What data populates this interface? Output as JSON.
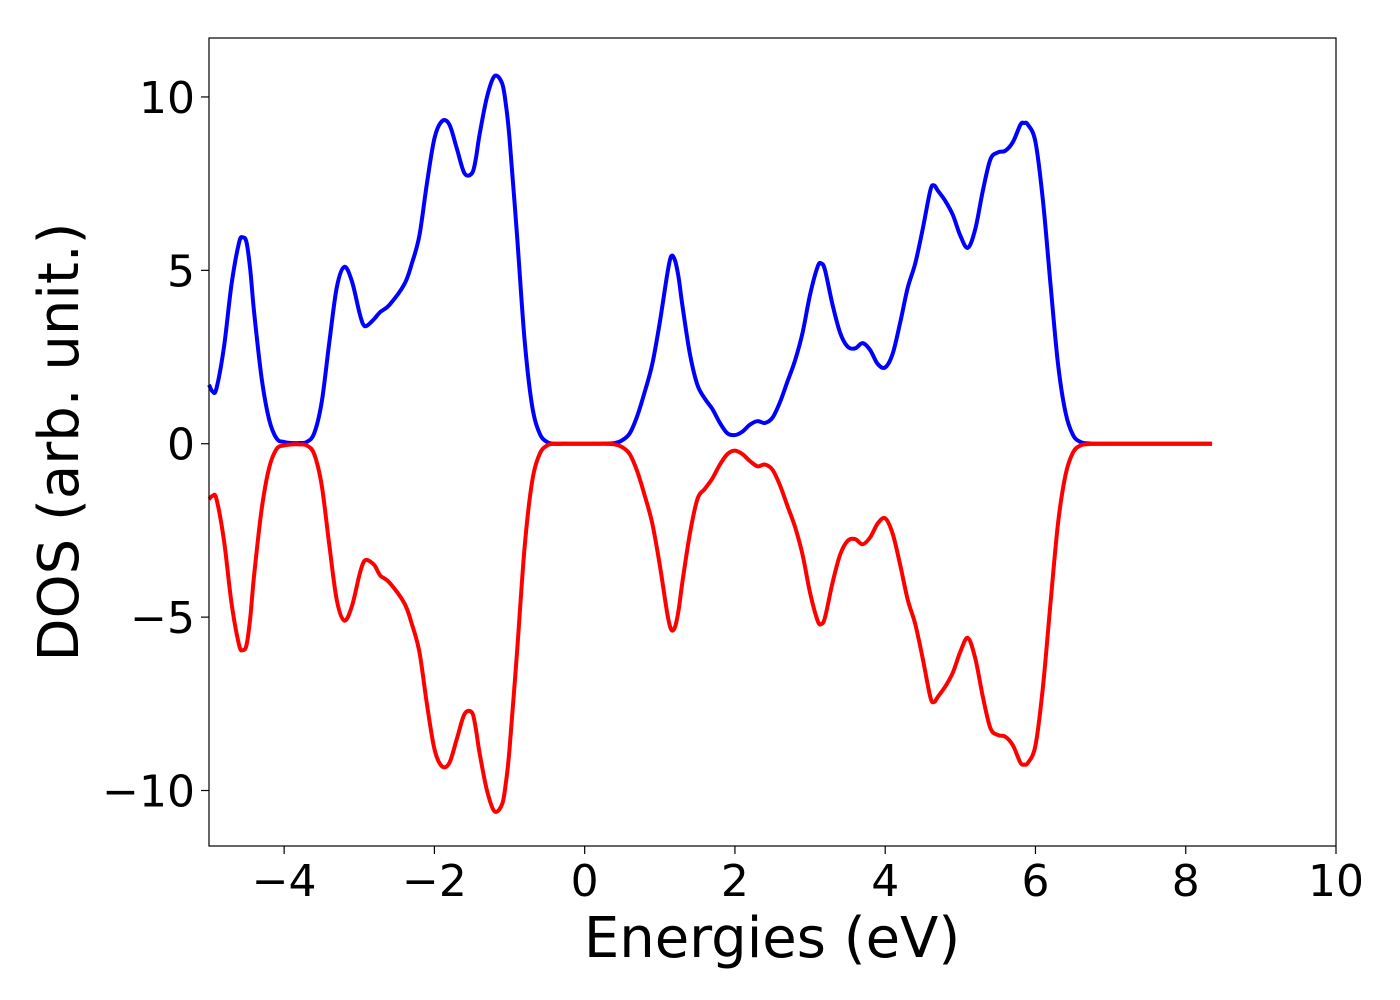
{
  "chart_data": {
    "type": "line",
    "title": "",
    "xlabel": "Energies (eV)",
    "ylabel": "DOS (arb. unit.)",
    "xlim": [
      -5,
      10
    ],
    "ylim": [
      -11.6,
      11.7
    ],
    "x_ticks": [
      -4,
      -2,
      0,
      2,
      4,
      6,
      8,
      10
    ],
    "x_tick_labels": [
      "−4",
      "−2",
      "0",
      "2",
      "4",
      "6",
      "8",
      "10"
    ],
    "y_ticks": [
      -10,
      -5,
      0,
      5,
      10
    ],
    "y_tick_labels": [
      "−10",
      "−5",
      "0",
      "5",
      "10"
    ],
    "grid": false,
    "legend": "none",
    "colors": {
      "spin_up": "#0000ff",
      "spin_down": "#ff0000",
      "axes": "#000000"
    },
    "series": [
      {
        "color": "#0000ff",
        "x": [
          -5.0,
          -4.95,
          -4.9,
          -4.8,
          -4.7,
          -4.6,
          -4.55,
          -4.5,
          -4.45,
          -4.4,
          -4.3,
          -4.2,
          -4.1,
          -4.0,
          -3.9,
          -3.8,
          -3.7,
          -3.6,
          -3.5,
          -3.4,
          -3.3,
          -3.2,
          -3.1,
          -3.0,
          -2.95,
          -2.9,
          -2.8,
          -2.72,
          -2.6,
          -2.4,
          -2.3,
          -2.2,
          -2.1,
          -2.0,
          -1.9,
          -1.8,
          -1.7,
          -1.6,
          -1.5,
          -1.45,
          -1.4,
          -1.3,
          -1.2,
          -1.1,
          -1.05,
          -1.0,
          -0.9,
          -0.8,
          -0.7,
          -0.6,
          -0.5,
          -0.4,
          -0.2,
          0.0,
          0.2,
          0.4,
          0.5,
          0.6,
          0.7,
          0.8,
          0.9,
          1.0,
          1.1,
          1.15,
          1.2,
          1.25,
          1.3,
          1.4,
          1.5,
          1.6,
          1.7,
          1.8,
          1.9,
          2.0,
          2.1,
          2.2,
          2.3,
          2.4,
          2.5,
          2.6,
          2.7,
          2.8,
          2.9,
          3.0,
          3.1,
          3.15,
          3.2,
          3.3,
          3.4,
          3.5,
          3.6,
          3.7,
          3.8,
          3.9,
          4.0,
          4.1,
          4.2,
          4.3,
          4.4,
          4.5,
          4.6,
          4.65,
          4.7,
          4.8,
          4.9,
          5.0,
          5.1,
          5.2,
          5.3,
          5.4,
          5.5,
          5.6,
          5.7,
          5.8,
          5.85,
          5.9,
          6.0,
          6.1,
          6.2,
          6.3,
          6.4,
          6.5,
          6.6,
          6.7,
          6.8,
          7.0,
          7.5,
          8.0,
          8.35
        ],
        "y": [
          1.7,
          1.5,
          1.6,
          2.8,
          4.6,
          5.8,
          5.95,
          5.8,
          5.0,
          3.8,
          1.9,
          0.7,
          0.15,
          0.05,
          0.02,
          0.02,
          0.05,
          0.3,
          1.2,
          2.9,
          4.5,
          5.1,
          4.7,
          3.8,
          3.45,
          3.4,
          3.6,
          3.8,
          4.0,
          4.6,
          5.2,
          6.0,
          7.5,
          8.8,
          9.3,
          9.2,
          8.5,
          7.8,
          7.8,
          8.2,
          8.9,
          10.0,
          10.6,
          10.4,
          9.8,
          8.8,
          6.0,
          3.0,
          1.1,
          0.3,
          0.05,
          0.0,
          0.0,
          0.0,
          0.0,
          0.02,
          0.1,
          0.3,
          0.8,
          1.5,
          2.3,
          3.5,
          4.9,
          5.4,
          5.3,
          4.8,
          4.0,
          2.6,
          1.7,
          1.3,
          1.0,
          0.6,
          0.3,
          0.25,
          0.35,
          0.55,
          0.65,
          0.6,
          0.75,
          1.2,
          1.8,
          2.4,
          3.2,
          4.3,
          5.1,
          5.2,
          5.0,
          4.0,
          3.2,
          2.8,
          2.75,
          2.9,
          2.7,
          2.3,
          2.2,
          2.6,
          3.5,
          4.5,
          5.2,
          6.2,
          7.3,
          7.45,
          7.3,
          7.0,
          6.6,
          6.0,
          5.65,
          6.2,
          7.3,
          8.2,
          8.4,
          8.45,
          8.7,
          9.2,
          9.25,
          9.2,
          8.7,
          7.0,
          4.6,
          2.3,
          0.9,
          0.25,
          0.05,
          0.01,
          0.0,
          0.0,
          0.0,
          0.0,
          0.0
        ]
      },
      {
        "color": "#ff0000",
        "x": [
          -5.0,
          -4.95,
          -4.9,
          -4.8,
          -4.7,
          -4.6,
          -4.55,
          -4.5,
          -4.45,
          -4.4,
          -4.3,
          -4.2,
          -4.1,
          -4.0,
          -3.9,
          -3.8,
          -3.7,
          -3.6,
          -3.5,
          -3.4,
          -3.3,
          -3.2,
          -3.1,
          -3.0,
          -2.95,
          -2.9,
          -2.8,
          -2.72,
          -2.6,
          -2.4,
          -2.3,
          -2.2,
          -2.1,
          -2.0,
          -1.9,
          -1.8,
          -1.7,
          -1.6,
          -1.5,
          -1.45,
          -1.4,
          -1.3,
          -1.2,
          -1.1,
          -1.05,
          -1.0,
          -0.9,
          -0.8,
          -0.7,
          -0.6,
          -0.5,
          -0.4,
          -0.2,
          0.0,
          0.2,
          0.4,
          0.5,
          0.6,
          0.7,
          0.8,
          0.9,
          1.0,
          1.1,
          1.15,
          1.2,
          1.25,
          1.3,
          1.4,
          1.5,
          1.6,
          1.7,
          1.8,
          1.9,
          2.0,
          2.1,
          2.2,
          2.3,
          2.4,
          2.5,
          2.6,
          2.7,
          2.8,
          2.9,
          3.0,
          3.1,
          3.15,
          3.2,
          3.3,
          3.4,
          3.5,
          3.6,
          3.7,
          3.8,
          3.9,
          4.0,
          4.1,
          4.2,
          4.3,
          4.4,
          4.5,
          4.6,
          4.65,
          4.7,
          4.8,
          4.9,
          5.0,
          5.1,
          5.2,
          5.3,
          5.4,
          5.5,
          5.6,
          5.7,
          5.8,
          5.85,
          5.9,
          6.0,
          6.1,
          6.2,
          6.3,
          6.4,
          6.5,
          6.6,
          6.7,
          6.8,
          7.0,
          7.5,
          8.0,
          8.35
        ],
        "y": [
          -1.6,
          -1.5,
          -1.6,
          -2.8,
          -4.6,
          -5.8,
          -5.95,
          -5.8,
          -5.0,
          -3.8,
          -1.9,
          -0.7,
          -0.15,
          -0.05,
          -0.02,
          -0.02,
          -0.05,
          -0.3,
          -1.2,
          -2.9,
          -4.5,
          -5.1,
          -4.7,
          -3.8,
          -3.45,
          -3.35,
          -3.5,
          -3.8,
          -4.0,
          -4.6,
          -5.2,
          -6.0,
          -7.5,
          -8.8,
          -9.3,
          -9.2,
          -8.5,
          -7.8,
          -7.75,
          -8.2,
          -8.9,
          -10.0,
          -10.6,
          -10.4,
          -9.8,
          -8.8,
          -6.0,
          -3.0,
          -1.1,
          -0.3,
          -0.05,
          0.0,
          0.0,
          0.0,
          0.0,
          -0.02,
          -0.1,
          -0.3,
          -0.8,
          -1.5,
          -2.3,
          -3.5,
          -4.9,
          -5.35,
          -5.3,
          -4.8,
          -4.0,
          -2.6,
          -1.6,
          -1.3,
          -1.0,
          -0.6,
          -0.3,
          -0.2,
          -0.3,
          -0.5,
          -0.65,
          -0.6,
          -0.75,
          -1.2,
          -1.8,
          -2.4,
          -3.2,
          -4.3,
          -5.1,
          -5.2,
          -5.0,
          -4.0,
          -3.2,
          -2.8,
          -2.75,
          -2.9,
          -2.7,
          -2.3,
          -2.15,
          -2.6,
          -3.5,
          -4.5,
          -5.2,
          -6.2,
          -7.3,
          -7.45,
          -7.3,
          -7.0,
          -6.6,
          -6.0,
          -5.6,
          -6.2,
          -7.3,
          -8.2,
          -8.4,
          -8.45,
          -8.7,
          -9.2,
          -9.25,
          -9.2,
          -8.7,
          -7.0,
          -4.6,
          -2.3,
          -0.9,
          -0.25,
          -0.05,
          -0.01,
          0.0,
          0.0,
          0.0,
          0.0,
          0.0
        ]
      }
    ]
  }
}
